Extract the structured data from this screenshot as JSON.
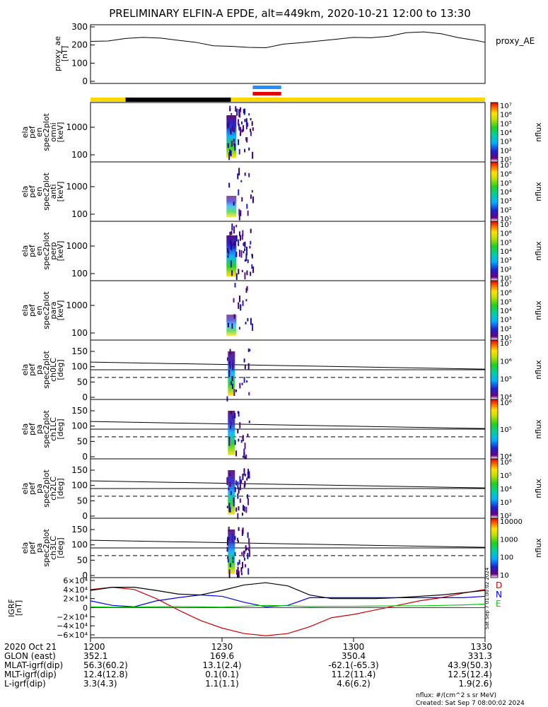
{
  "chart_data": {
    "type": "spectrogram",
    "title": "PRELIMINARY ELFIN-A EPDE, alt=449km, 2020-10-21 12:00 to 13:30",
    "time_range": [
      "2020-10-21 12:00",
      "2020-10-21 13:30"
    ],
    "proxy_ae": {
      "ylabel": [
        "proxy_ae",
        "[nT]"
      ],
      "legend": "proxy_AE",
      "ylim": [
        0,
        300
      ],
      "yticks": [
        "0",
        "100",
        "200",
        "300"
      ],
      "t_min": [
        0,
        4,
        8,
        12,
        16,
        20,
        24,
        28,
        32,
        36,
        40,
        44,
        48,
        52,
        56,
        60,
        64,
        68,
        72,
        76,
        80,
        84,
        88,
        90
      ],
      "values": [
        220,
        222,
        236,
        242,
        238,
        226,
        215,
        196,
        193,
        187,
        185,
        205,
        213,
        222,
        232,
        242,
        240,
        248,
        268,
        272,
        262,
        240,
        225,
        215
      ]
    },
    "status_bars": {
      "top_blue": [
        37,
        43.5
      ],
      "top_red": [
        37,
        43.5
      ],
      "yellow_segments": [
        [
          0,
          8
        ],
        [
          32,
          90
        ]
      ],
      "black_segments": [
        [
          8,
          32
        ]
      ]
    },
    "energy_panels": [
      {
        "ylabel": [
          "ela",
          "pef",
          "en",
          "spec2plot",
          "omni",
          "[keV]"
        ],
        "yticks": [
          "100",
          "1000"
        ],
        "cbar": {
          "label": "nflux",
          "ticks": [
            "10¹",
            "10²",
            "10³",
            "10⁴",
            "10⁵",
            "10⁶",
            "10⁷"
          ]
        }
      },
      {
        "ylabel": [
          "ela",
          "pef",
          "en",
          "spec2plot",
          "anti",
          "[keV]"
        ],
        "yticks": [
          "100",
          "1000"
        ],
        "cbar": {
          "label": "nflux",
          "ticks": [
            "10¹",
            "10²",
            "10³",
            "10⁴",
            "10⁵",
            "10⁶",
            "10⁷"
          ]
        }
      },
      {
        "ylabel": [
          "ela",
          "pef",
          "en",
          "spec2plot",
          "perp",
          "[keV]"
        ],
        "yticks": [
          "100",
          "1000"
        ],
        "cbar": {
          "label": "nflux",
          "ticks": [
            "10¹",
            "10²",
            "10³",
            "10⁴",
            "10⁵",
            "10⁶",
            "10⁷"
          ]
        }
      },
      {
        "ylabel": [
          "ela",
          "pef",
          "en",
          "spec2plot",
          "para",
          "[keV]"
        ],
        "yticks": [
          "100",
          "1000"
        ],
        "cbar": {
          "label": "nflux",
          "ticks": [
            "10¹",
            "10²",
            "10³",
            "10⁴",
            "10⁵",
            "10⁶",
            "10⁷"
          ]
        }
      }
    ],
    "pa_panels": [
      {
        "ylabel": [
          "ela",
          "pef",
          "pa",
          "spec2plot",
          "ch0LC",
          "[deg]"
        ],
        "yticks": [
          "0",
          "50",
          "100",
          "150"
        ],
        "cbar": {
          "label": "nflux",
          "ticks": [
            "10⁴",
            "10⁵",
            "10⁶",
            "10⁷"
          ]
        }
      },
      {
        "ylabel": [
          "ela",
          "pef",
          "pa",
          "spec2plot",
          "ch1LC",
          "[deg]"
        ],
        "yticks": [
          "0",
          "50",
          "100",
          "150"
        ],
        "cbar": {
          "label": "nflux",
          "ticks": [
            "10⁴",
            "10⁵",
            "10⁶"
          ]
        }
      },
      {
        "ylabel": [
          "ela",
          "pef",
          "pa",
          "spec2plot",
          "ch2LC",
          "[deg]"
        ],
        "yticks": [
          "0",
          "50",
          "100",
          "150"
        ],
        "cbar": {
          "label": "nflux",
          "ticks": [
            "10²",
            "10³",
            "10⁴",
            "10⁵",
            "10⁶"
          ]
        }
      },
      {
        "ylabel": [
          "ela",
          "pef",
          "pa",
          "spec2plot",
          "ch3LC",
          "[deg]"
        ],
        "yticks": [
          "0",
          "50",
          "100",
          "150"
        ],
        "cbar": {
          "label": "nflux",
          "ticks": [
            "10",
            "100",
            "1000",
            "10000"
          ]
        }
      }
    ],
    "igrf": {
      "ylabel": [
        "IGRF",
        "[nT]"
      ],
      "ylim": [
        -60000,
        60000
      ],
      "yticks": [
        "6×10⁴",
        "4×10⁴",
        "2×10⁴",
        "0",
        "−2×10⁴",
        "−4×10⁴",
        "−6×10⁴"
      ],
      "t_min": [
        0,
        5,
        10,
        15,
        20,
        25,
        30,
        35,
        40,
        45,
        50,
        55,
        60,
        65,
        70,
        75,
        80,
        85,
        90
      ],
      "series": [
        {
          "name": "D",
          "color": "#d00000",
          "values": [
            40000,
            45000,
            40000,
            20000,
            -5000,
            -28000,
            -45000,
            -57000,
            -62000,
            -57000,
            -42000,
            -22000,
            -15000,
            -5000,
            5000,
            15000,
            22000,
            32000,
            40000
          ]
        },
        {
          "name": "N",
          "color": "#0000ee",
          "values": [
            15000,
            5000,
            2000,
            15000,
            22000,
            28000,
            25000,
            12000,
            2000,
            5000,
            22000,
            22000,
            22000,
            22000,
            22000,
            22000,
            22000,
            22000,
            25000
          ]
        },
        {
          "name": "E",
          "color": "#00cc00",
          "values": [
            2000,
            1000,
            1500,
            2000,
            2500,
            2000,
            1000,
            3000,
            5000,
            4000,
            2500,
            3000,
            3000,
            3500,
            4000,
            4000,
            5000,
            6000,
            8000
          ]
        },
        {
          "name": "",
          "color": "#000000",
          "values": [
            38000,
            45000,
            45000,
            38000,
            30000,
            28000,
            38000,
            50000,
            55000,
            48000,
            28000,
            20000,
            20000,
            20000,
            22000,
            25000,
            28000,
            33000,
            38000
          ]
        }
      ]
    },
    "orbit_table": {
      "rows": [
        {
          "label": "2020 Oct 21",
          "values": [
            "1200",
            "1230",
            "1300",
            "1330"
          ]
        },
        {
          "label": "GLON (east)",
          "values": [
            "352.1",
            "169.6",
            "350.4",
            "331.3"
          ]
        },
        {
          "label": "MLAT-igrf(dip)",
          "values": [
            "56.3(60.2)",
            "13.1(2.4)",
            "-62.1(-65.3)",
            "43.9(50.3)"
          ]
        },
        {
          "label": "MLT-igrf(dip)",
          "values": [
            "12.4(12.8)",
            "0.1(0.1)",
            "11.2(11.4)",
            "12.5(12.4)"
          ]
        },
        {
          "label": "L-igrf(dip)",
          "values": [
            "3.3(4.3)",
            "1.1(1.1)",
            "4.6(6.2)",
            "1.9(2.6)"
          ]
        }
      ]
    },
    "side_note": "Sat Sep  7 01:00:02 2024",
    "footer": [
      "nflux: #/(cm^2 s sr MeV)",
      "Created: Sat Sep  7 08:00:02 2024"
    ]
  }
}
